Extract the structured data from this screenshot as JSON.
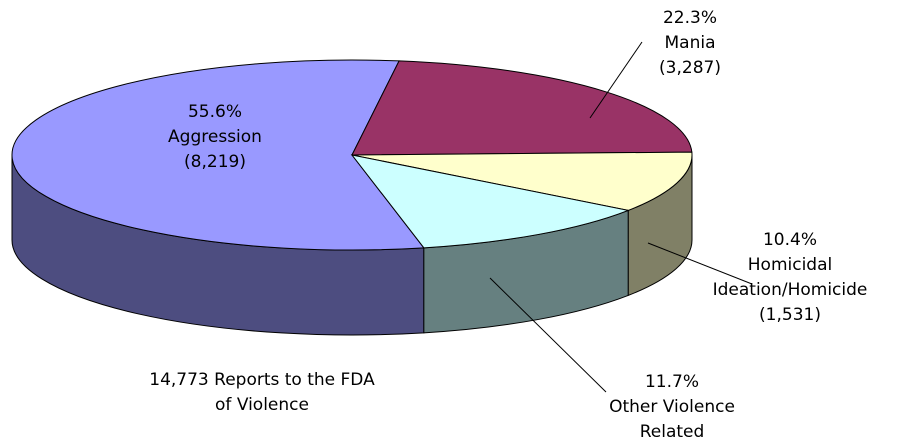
{
  "chart_data": {
    "type": "pie3d",
    "categories": [
      "Aggression",
      "Mania",
      "Homicidal\nIdeation/Homicide",
      "Other Violence\nRelated"
    ],
    "values": [
      55.6,
      22.3,
      10.4,
      11.7
    ],
    "value_labels": [
      "55.6%",
      "22.3%",
      "10.4%",
      "11.7%"
    ],
    "counts": [
      {
        "value": 8219,
        "label": "(8,219)"
      },
      {
        "value": 3287,
        "label": "(3,287)"
      },
      {
        "value": 1531,
        "label": "(1,531)"
      },
      null
    ],
    "colors": [
      "#9999ff",
      "#993366",
      "#ffffcc",
      "#ccffff"
    ],
    "side_colors": [
      "#4d4d80",
      "#4d1a33",
      "#808066",
      "#668080"
    ],
    "annotation": "14,773 Reports to the FDA\nof Violence"
  }
}
